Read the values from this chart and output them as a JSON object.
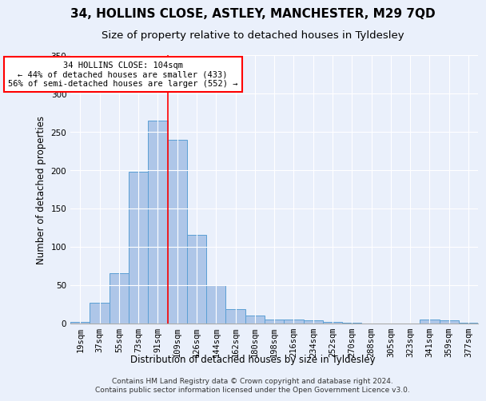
{
  "title": "34, HOLLINS CLOSE, ASTLEY, MANCHESTER, M29 7QD",
  "subtitle": "Size of property relative to detached houses in Tyldesley",
  "xlabel": "Distribution of detached houses by size in Tyldesley",
  "ylabel": "Number of detached properties",
  "bar_labels": [
    "19sqm",
    "37sqm",
    "55sqm",
    "73sqm",
    "91sqm",
    "109sqm",
    "126sqm",
    "144sqm",
    "162sqm",
    "180sqm",
    "198sqm",
    "216sqm",
    "234sqm",
    "252sqm",
    "270sqm",
    "288sqm",
    "305sqm",
    "323sqm",
    "341sqm",
    "359sqm",
    "377sqm"
  ],
  "bar_values": [
    2,
    27,
    65,
    198,
    265,
    240,
    115,
    50,
    18,
    10,
    5,
    5,
    4,
    2,
    1,
    0,
    0,
    0,
    5,
    4,
    1
  ],
  "bar_color": "#aec6e8",
  "bar_edge_color": "#5a9fd4",
  "property_line_x": 4.5,
  "annotation_line1": "34 HOLLINS CLOSE: 104sqm",
  "annotation_line2": "← 44% of detached houses are smaller (433)",
  "annotation_line3": "56% of semi-detached houses are larger (552) →",
  "annotation_box_color": "white",
  "annotation_box_edge_color": "red",
  "vline_color": "red",
  "ylim": [
    0,
    350
  ],
  "yticks": [
    0,
    50,
    100,
    150,
    200,
    250,
    300,
    350
  ],
  "footer_line1": "Contains HM Land Registry data © Crown copyright and database right 2024.",
  "footer_line2": "Contains public sector information licensed under the Open Government Licence v3.0.",
  "background_color": "#eaf0fb",
  "grid_color": "white",
  "title_fontsize": 11,
  "subtitle_fontsize": 9.5,
  "axis_label_fontsize": 8.5,
  "tick_fontsize": 7.5,
  "annotation_fontsize": 7.5,
  "footer_fontsize": 6.5
}
